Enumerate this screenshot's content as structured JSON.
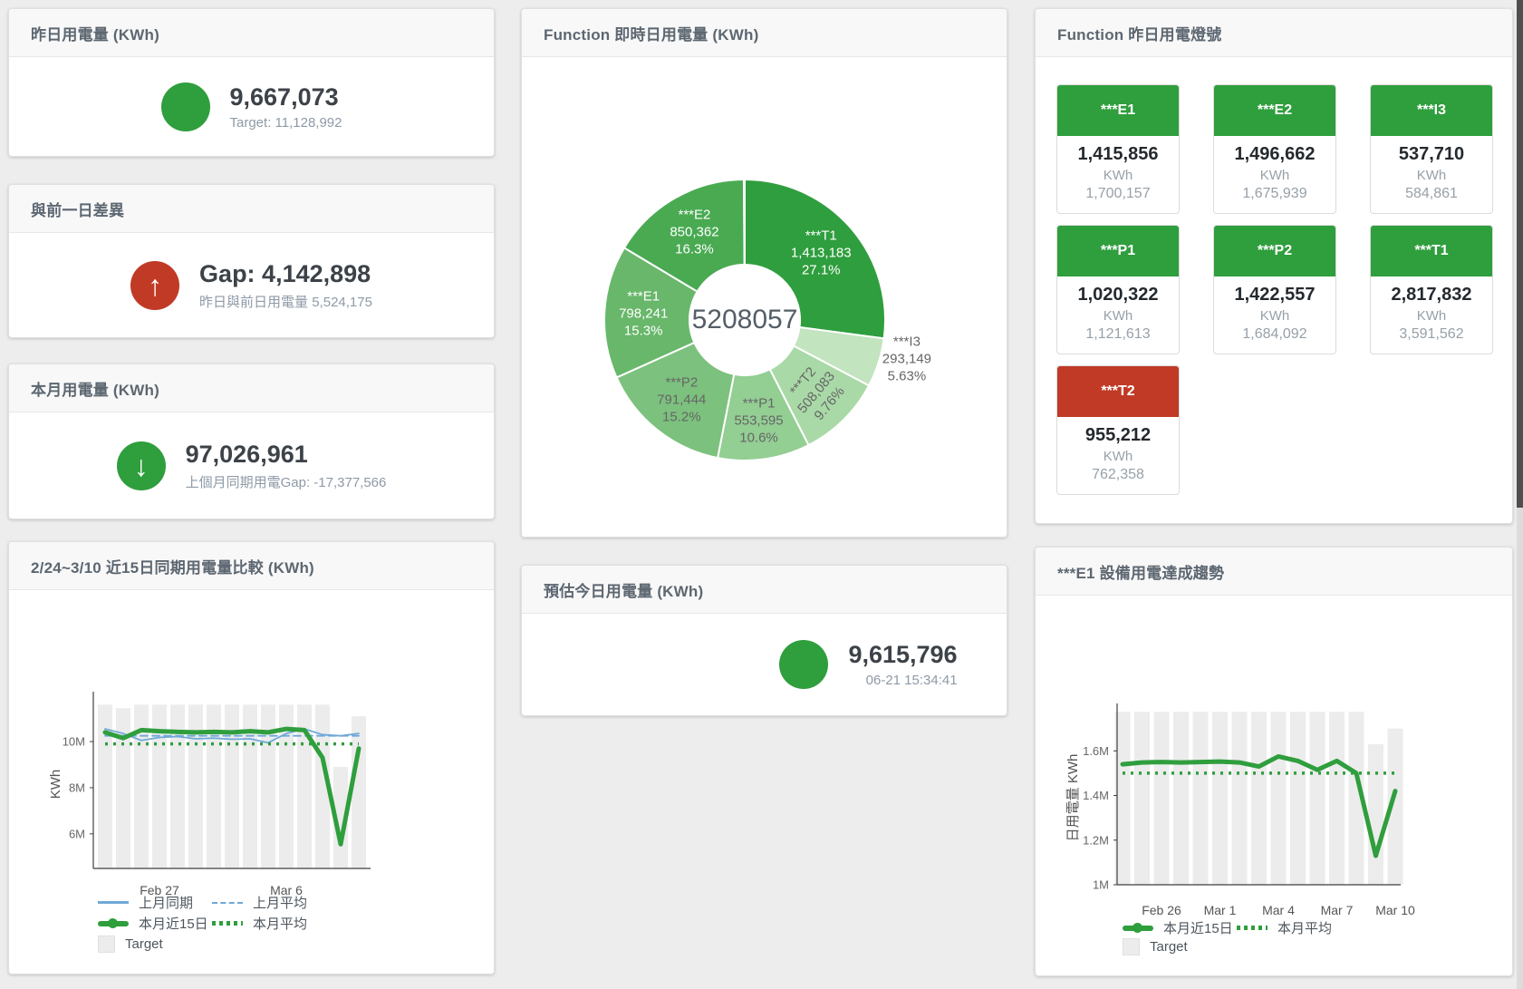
{
  "colors": {
    "green": "#2f9e3d",
    "red": "#c03a26",
    "blue_line": "#6fa8d8",
    "target_bar": "#ececec",
    "page_bg": "#ededed"
  },
  "cards": {
    "yesterday": {
      "title": "昨日用電量 (KWh)",
      "value": "9,667,073",
      "subtext": "Target: 11,128,992",
      "status": "green"
    },
    "gap": {
      "title": "與前一日差異",
      "value": "Gap: 4,142,898",
      "subtext": "昨日與前日用電量 5,524,175",
      "status": "red",
      "direction": "up"
    },
    "month": {
      "title": "本月用電量 (KWh)",
      "value": "97,026,961",
      "subtext": "上個月同期用電Gap: -17,377,566",
      "status": "green",
      "direction": "down"
    },
    "estimate": {
      "title": "預估今日用電量 (KWh)",
      "value": "9,615,796",
      "subtext": "06-21 15:34:41",
      "status": "green"
    },
    "lights": {
      "title": "Function 昨日用電燈號",
      "unit": "KWh",
      "tiles": [
        {
          "label": "***E1",
          "value": "1,415,856",
          "unit": "KWh",
          "target": "1,700,157",
          "status": "green"
        },
        {
          "label": "***E2",
          "value": "1,496,662",
          "unit": "KWh",
          "target": "1,675,939",
          "status": "green"
        },
        {
          "label": "***I3",
          "value": "537,710",
          "unit": "KWh",
          "target": "584,861",
          "status": "green"
        },
        {
          "label": "***P1",
          "value": "1,020,322",
          "unit": "KWh",
          "target": "1,121,613",
          "status": "green"
        },
        {
          "label": "***P2",
          "value": "1,422,557",
          "unit": "KWh",
          "target": "1,684,092",
          "status": "green"
        },
        {
          "label": "***T1",
          "value": "2,817,832",
          "unit": "KWh",
          "target": "3,591,562",
          "status": "green"
        },
        {
          "label": "***T2",
          "value": "955,212",
          "unit": "KWh",
          "target": "762,358",
          "status": "red"
        }
      ]
    }
  },
  "chart_data": [
    {
      "id": "donut",
      "type": "pie",
      "title": "Function 即時日用電量 (KWh)",
      "center_label": "5208057",
      "legend_position": "none",
      "slices": [
        {
          "label": "***T1",
          "value": 1413183,
          "value_label": "1,413,183",
          "pct": 27.1,
          "pct_label": "27.1%",
          "color": "#2f9e3e",
          "text_color": "#ffffff"
        },
        {
          "label": "***I3",
          "value": 293149,
          "value_label": "293,149",
          "pct": 5.63,
          "pct_label": "5.63%",
          "color": "#c2e4bf",
          "text_color": "#666666",
          "placement": "outside"
        },
        {
          "label": "***T2",
          "value": 508083,
          "value_label": "508,083",
          "pct": 9.76,
          "pct_label": "9.76%",
          "color": "#a9d9a7",
          "text_color": "#666666",
          "rotate": -50
        },
        {
          "label": "***P1",
          "value": 553595,
          "value_label": "553,595",
          "pct": 10.6,
          "pct_label": "10.6%",
          "color": "#93ce93",
          "text_color": "#666666"
        },
        {
          "label": "***P2",
          "value": 791444,
          "value_label": "791,444",
          "pct": 15.2,
          "pct_label": "15.2%",
          "color": "#7cc17e",
          "text_color": "#666666"
        },
        {
          "label": "***E1",
          "value": 798241,
          "value_label": "798,241",
          "pct": 15.3,
          "pct_label": "15.3%",
          "color": "#68b76b",
          "text_color": "#ffffff"
        },
        {
          "label": "***E2",
          "value": 850362,
          "value_label": "850,362",
          "pct": 16.3,
          "pct_label": "16.3%",
          "color": "#49aa52",
          "text_color": "#ffffff"
        }
      ]
    },
    {
      "id": "compare15",
      "type": "line",
      "title": "2/24~3/10 近15日同期用電量比較 (KWh)",
      "ylabel": "KWh",
      "unit": "millions of KWh",
      "grid": false,
      "n_points": 15,
      "x_range": [
        "Feb 24",
        "Mar 10"
      ],
      "ylim": [
        4.5,
        11.85
      ],
      "y_ticks": [
        {
          "label": "6M",
          "value": 6
        },
        {
          "label": "8M",
          "value": 8
        },
        {
          "label": "10M",
          "value": 10
        }
      ],
      "x_ticks": [
        {
          "label": "Feb 27",
          "index": 3
        },
        {
          "label": "Mar 6",
          "index": 10
        }
      ],
      "series": [
        {
          "name": "Target",
          "type": "bar",
          "color": "#ececec",
          "values": [
            11.6,
            11.45,
            11.6,
            11.6,
            11.6,
            11.6,
            11.6,
            11.6,
            11.6,
            11.6,
            11.6,
            11.6,
            11.6,
            8.9,
            11.1
          ]
        },
        {
          "name": "上月同期",
          "type": "line",
          "dash": "solid",
          "width": 1.8,
          "color": "#6fa8d8",
          "values": [
            10.55,
            10.35,
            10.05,
            10.18,
            10.22,
            10.12,
            10.15,
            10.1,
            10.12,
            9.95,
            10.35,
            10.55,
            10.3,
            10.25,
            10.35
          ]
        },
        {
          "name": "上月平均",
          "type": "line",
          "dash": "dashed",
          "width": 1.8,
          "color": "#6fa8d8",
          "constant": 10.25
        },
        {
          "name": "本月近15日",
          "type": "line",
          "dash": "solid",
          "width": 5,
          "color": "#2f9e3d",
          "values": [
            10.4,
            10.15,
            10.5,
            10.45,
            10.42,
            10.4,
            10.42,
            10.4,
            10.45,
            10.4,
            10.55,
            10.5,
            9.3,
            5.55,
            9.7
          ]
        },
        {
          "name": "本月平均",
          "type": "line",
          "dash": "dotted",
          "width": 3.5,
          "color": "#2f9e3d",
          "constant": 9.9
        }
      ],
      "legend_rows": [
        [
          {
            "label": "上月同期",
            "swatch": "line",
            "color": "#6fa8d8"
          },
          {
            "label": "上月平均",
            "swatch": "dashed",
            "color": "#6fa8d8"
          }
        ],
        [
          {
            "label": "本月近15日",
            "swatch": "thick",
            "color": "#2f9e3d"
          },
          {
            "label": "本月平均",
            "swatch": "dotted",
            "color": "#2f9e3d"
          }
        ],
        [
          {
            "label": "Target",
            "swatch": "square",
            "color": "#ececec"
          }
        ]
      ]
    },
    {
      "id": "trend",
      "type": "line",
      "title": "***E1 設備用電達成趨勢",
      "ylabel": "日用電量 KWh",
      "unit": "millions of KWh",
      "grid": false,
      "n_points": 15,
      "x_range": [
        "Feb 24",
        "Mar 10"
      ],
      "ylim": [
        1.0,
        1.78
      ],
      "y_ticks": [
        {
          "label": "1M",
          "value": 1
        },
        {
          "label": "1.2M",
          "value": 1.2
        },
        {
          "label": "1.4M",
          "value": 1.4
        },
        {
          "label": "1.6M",
          "value": 1.6
        }
      ],
      "x_ticks": [
        {
          "label": "Feb 26",
          "index": 2
        },
        {
          "label": "Mar 1",
          "index": 5
        },
        {
          "label": "Mar 4",
          "index": 8
        },
        {
          "label": "Mar 7",
          "index": 11
        },
        {
          "label": "Mar 10",
          "index": 14
        }
      ],
      "series": [
        {
          "name": "Target",
          "type": "bar",
          "color": "#ececec",
          "values": [
            1.775,
            1.775,
            1.775,
            1.775,
            1.775,
            1.775,
            1.775,
            1.775,
            1.775,
            1.775,
            1.775,
            1.775,
            1.775,
            1.63,
            1.7
          ]
        },
        {
          "name": "本月近15日",
          "type": "line",
          "dash": "solid",
          "width": 5,
          "color": "#2f9e3d",
          "values": [
            1.54,
            1.548,
            1.55,
            1.548,
            1.55,
            1.552,
            1.548,
            1.53,
            1.575,
            1.555,
            1.515,
            1.555,
            1.5,
            1.13,
            1.42
          ]
        },
        {
          "name": "本月平均",
          "type": "line",
          "dash": "dotted",
          "width": 3.5,
          "color": "#2f9e3d",
          "constant": 1.5
        }
      ],
      "legend_rows": [
        [
          {
            "label": "本月近15日",
            "swatch": "thick",
            "color": "#2f9e3d"
          },
          {
            "label": "本月平均",
            "swatch": "dotted",
            "color": "#2f9e3d"
          }
        ],
        [
          {
            "label": "Target",
            "swatch": "square",
            "color": "#ececec"
          }
        ]
      ]
    }
  ]
}
